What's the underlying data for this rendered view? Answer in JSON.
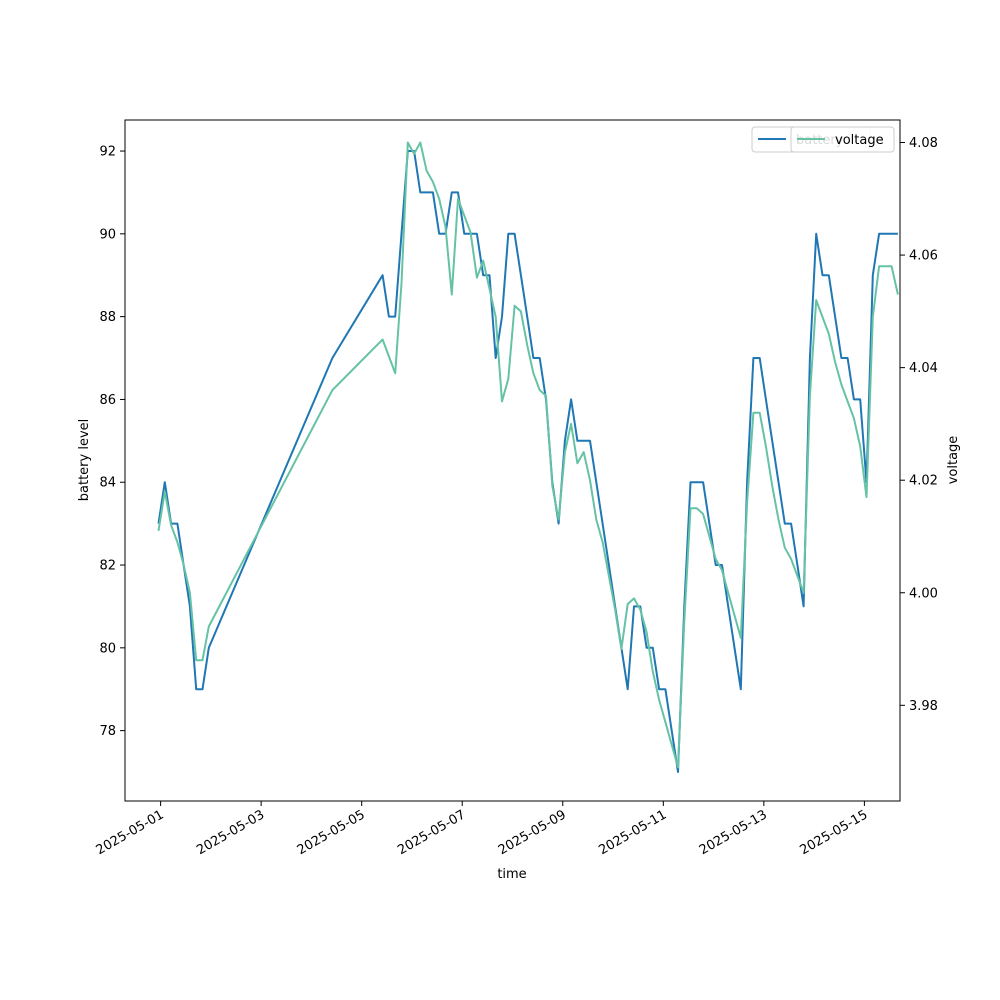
{
  "chart_data": {
    "type": "line",
    "xlabel": "time",
    "ylabel_left": "battery level",
    "ylabel_right": "voltage",
    "x_ticks": [
      "2025-05-01",
      "2025-05-03",
      "2025-05-05",
      "2025-05-07",
      "2025-05-09",
      "2025-05-11",
      "2025-05-13",
      "2025-05-15"
    ],
    "y_left_ticks": [
      78,
      80,
      82,
      84,
      86,
      88,
      90,
      92
    ],
    "y_right_ticks": [
      "3.98",
      "4.00",
      "4.02",
      "4.04",
      "4.06",
      "4.08"
    ],
    "y_left_range": [
      76.3,
      92.75
    ],
    "y_right_range": [
      3.963,
      4.084
    ],
    "x_range": [
      "2025-04-30 07:00",
      "2025-05-15 17:00"
    ],
    "legend": [
      "battery",
      "voltage"
    ],
    "grid": false,
    "series": [
      {
        "name": "battery",
        "axis": "left",
        "color": "#1f77b4",
        "points": [
          [
            "2025-04-30 23:00",
            83
          ],
          [
            "2025-05-01 02:00",
            84
          ],
          [
            "2025-05-01 05:00",
            83
          ],
          [
            "2025-05-01 08:00",
            83
          ],
          [
            "2025-05-01 11:00",
            82
          ],
          [
            "2025-05-01 14:00",
            81
          ],
          [
            "2025-05-01 17:00",
            79
          ],
          [
            "2025-05-01 20:00",
            79
          ],
          [
            "2025-05-01 23:00",
            80
          ],
          [
            "2025-05-04 10:00",
            87
          ],
          [
            "2025-05-05 10:00",
            89
          ],
          [
            "2025-05-05 13:00",
            88
          ],
          [
            "2025-05-05 16:00",
            88
          ],
          [
            "2025-05-05 19:00",
            90
          ],
          [
            "2025-05-05 22:00",
            92
          ],
          [
            "2025-05-06 01:00",
            92
          ],
          [
            "2025-05-06 04:00",
            91
          ],
          [
            "2025-05-06 07:00",
            91
          ],
          [
            "2025-05-06 10:00",
            91
          ],
          [
            "2025-05-06 13:00",
            90
          ],
          [
            "2025-05-06 16:00",
            90
          ],
          [
            "2025-05-06 19:00",
            91
          ],
          [
            "2025-05-06 22:00",
            91
          ],
          [
            "2025-05-07 01:00",
            90
          ],
          [
            "2025-05-07 04:00",
            90
          ],
          [
            "2025-05-07 07:00",
            90
          ],
          [
            "2025-05-07 10:00",
            89
          ],
          [
            "2025-05-07 13:00",
            89
          ],
          [
            "2025-05-07 16:00",
            87
          ],
          [
            "2025-05-07 19:00",
            88
          ],
          [
            "2025-05-07 22:00",
            90
          ],
          [
            "2025-05-08 01:00",
            90
          ],
          [
            "2025-05-08 04:00",
            89
          ],
          [
            "2025-05-08 07:00",
            88
          ],
          [
            "2025-05-08 10:00",
            87
          ],
          [
            "2025-05-08 13:00",
            87
          ],
          [
            "2025-05-08 16:00",
            86
          ],
          [
            "2025-05-08 19:00",
            84
          ],
          [
            "2025-05-08 22:00",
            83
          ],
          [
            "2025-05-09 01:00",
            85
          ],
          [
            "2025-05-09 04:00",
            86
          ],
          [
            "2025-05-09 07:00",
            85
          ],
          [
            "2025-05-09 10:00",
            85
          ],
          [
            "2025-05-09 13:00",
            85
          ],
          [
            "2025-05-09 16:00",
            84
          ],
          [
            "2025-05-09 19:00",
            83
          ],
          [
            "2025-05-09 22:00",
            82
          ],
          [
            "2025-05-10 01:00",
            81
          ],
          [
            "2025-05-10 04:00",
            80
          ],
          [
            "2025-05-10 07:00",
            79
          ],
          [
            "2025-05-10 10:00",
            81
          ],
          [
            "2025-05-10 13:00",
            81
          ],
          [
            "2025-05-10 16:00",
            80
          ],
          [
            "2025-05-10 19:00",
            80
          ],
          [
            "2025-05-10 22:00",
            79
          ],
          [
            "2025-05-11 01:00",
            79
          ],
          [
            "2025-05-11 04:00",
            78
          ],
          [
            "2025-05-11 07:00",
            77
          ],
          [
            "2025-05-11 10:00",
            81
          ],
          [
            "2025-05-11 13:00",
            84
          ],
          [
            "2025-05-11 16:00",
            84
          ],
          [
            "2025-05-11 19:00",
            84
          ],
          [
            "2025-05-11 22:00",
            83
          ],
          [
            "2025-05-12 01:00",
            82
          ],
          [
            "2025-05-12 04:00",
            82
          ],
          [
            "2025-05-12 07:00",
            81
          ],
          [
            "2025-05-12 10:00",
            80
          ],
          [
            "2025-05-12 13:00",
            79
          ],
          [
            "2025-05-12 16:00",
            84
          ],
          [
            "2025-05-12 19:00",
            87
          ],
          [
            "2025-05-12 22:00",
            87
          ],
          [
            "2025-05-13 01:00",
            86
          ],
          [
            "2025-05-13 04:00",
            85
          ],
          [
            "2025-05-13 07:00",
            84
          ],
          [
            "2025-05-13 10:00",
            83
          ],
          [
            "2025-05-13 13:00",
            83
          ],
          [
            "2025-05-13 16:00",
            82
          ],
          [
            "2025-05-13 19:00",
            81
          ],
          [
            "2025-05-13 22:00",
            87
          ],
          [
            "2025-05-14 01:00",
            90
          ],
          [
            "2025-05-14 04:00",
            89
          ],
          [
            "2025-05-14 07:00",
            89
          ],
          [
            "2025-05-14 10:00",
            88
          ],
          [
            "2025-05-14 13:00",
            87
          ],
          [
            "2025-05-14 16:00",
            87
          ],
          [
            "2025-05-14 19:00",
            86
          ],
          [
            "2025-05-14 22:00",
            86
          ],
          [
            "2025-05-15 01:00",
            84
          ],
          [
            "2025-05-15 04:00",
            89
          ],
          [
            "2025-05-15 07:00",
            90
          ],
          [
            "2025-05-15 10:00",
            90
          ],
          [
            "2025-05-15 13:00",
            90
          ],
          [
            "2025-05-15 16:00",
            90
          ]
        ]
      },
      {
        "name": "voltage",
        "axis": "right",
        "color": "#66c2a5",
        "points": [
          [
            "2025-04-30 23:00",
            4.011
          ],
          [
            "2025-05-01 02:00",
            4.018
          ],
          [
            "2025-05-01 05:00",
            4.012
          ],
          [
            "2025-05-01 08:00",
            4.009
          ],
          [
            "2025-05-01 11:00",
            4.005
          ],
          [
            "2025-05-01 14:00",
            4.0
          ],
          [
            "2025-05-01 17:00",
            3.988
          ],
          [
            "2025-05-01 20:00",
            3.988
          ],
          [
            "2025-05-01 23:00",
            3.994
          ],
          [
            "2025-05-04 10:00",
            4.036
          ],
          [
            "2025-05-05 10:00",
            4.045
          ],
          [
            "2025-05-05 13:00",
            4.042
          ],
          [
            "2025-05-05 16:00",
            4.039
          ],
          [
            "2025-05-05 19:00",
            4.055
          ],
          [
            "2025-05-05 22:00",
            4.08
          ],
          [
            "2025-05-06 01:00",
            4.078
          ],
          [
            "2025-05-06 04:00",
            4.08
          ],
          [
            "2025-05-06 07:00",
            4.075
          ],
          [
            "2025-05-06 10:00",
            4.073
          ],
          [
            "2025-05-06 13:00",
            4.07
          ],
          [
            "2025-05-06 16:00",
            4.065
          ],
          [
            "2025-05-06 19:00",
            4.053
          ],
          [
            "2025-05-06 22:00",
            4.07
          ],
          [
            "2025-05-07 01:00",
            4.067
          ],
          [
            "2025-05-07 04:00",
            4.064
          ],
          [
            "2025-05-07 07:00",
            4.056
          ],
          [
            "2025-05-07 10:00",
            4.059
          ],
          [
            "2025-05-07 13:00",
            4.054
          ],
          [
            "2025-05-07 16:00",
            4.049
          ],
          [
            "2025-05-07 19:00",
            4.034
          ],
          [
            "2025-05-07 22:00",
            4.038
          ],
          [
            "2025-05-08 01:00",
            4.051
          ],
          [
            "2025-05-08 04:00",
            4.05
          ],
          [
            "2025-05-08 07:00",
            4.044
          ],
          [
            "2025-05-08 10:00",
            4.039
          ],
          [
            "2025-05-08 13:00",
            4.036
          ],
          [
            "2025-05-08 16:00",
            4.035
          ],
          [
            "2025-05-08 19:00",
            4.019
          ],
          [
            "2025-05-08 22:00",
            4.013
          ],
          [
            "2025-05-09 01:00",
            4.025
          ],
          [
            "2025-05-09 04:00",
            4.03
          ],
          [
            "2025-05-09 07:00",
            4.023
          ],
          [
            "2025-05-09 10:00",
            4.025
          ],
          [
            "2025-05-09 13:00",
            4.02
          ],
          [
            "2025-05-09 16:00",
            4.013
          ],
          [
            "2025-05-09 19:00",
            4.009
          ],
          [
            "2025-05-09 22:00",
            4.003
          ],
          [
            "2025-05-10 01:00",
            3.997
          ],
          [
            "2025-05-10 04:00",
            3.99
          ],
          [
            "2025-05-10 07:00",
            3.998
          ],
          [
            "2025-05-10 10:00",
            3.999
          ],
          [
            "2025-05-10 13:00",
            3.997
          ],
          [
            "2025-05-10 16:00",
            3.993
          ],
          [
            "2025-05-10 19:00",
            3.986
          ],
          [
            "2025-05-10 22:00",
            3.981
          ],
          [
            "2025-05-11 01:00",
            3.977
          ],
          [
            "2025-05-11 04:00",
            3.973
          ],
          [
            "2025-05-11 07:00",
            3.969
          ],
          [
            "2025-05-11 10:00",
            3.995
          ],
          [
            "2025-05-11 13:00",
            4.015
          ],
          [
            "2025-05-11 16:00",
            4.015
          ],
          [
            "2025-05-11 19:00",
            4.014
          ],
          [
            "2025-05-11 22:00",
            4.01
          ],
          [
            "2025-05-12 01:00",
            4.006
          ],
          [
            "2025-05-12 04:00",
            4.004
          ],
          [
            "2025-05-12 07:00",
            4.0
          ],
          [
            "2025-05-12 10:00",
            3.996
          ],
          [
            "2025-05-12 13:00",
            3.992
          ],
          [
            "2025-05-12 16:00",
            4.016
          ],
          [
            "2025-05-12 19:00",
            4.032
          ],
          [
            "2025-05-12 22:00",
            4.032
          ],
          [
            "2025-05-13 01:00",
            4.026
          ],
          [
            "2025-05-13 04:00",
            4.019
          ],
          [
            "2025-05-13 07:00",
            4.013
          ],
          [
            "2025-05-13 10:00",
            4.008
          ],
          [
            "2025-05-13 13:00",
            4.006
          ],
          [
            "2025-05-13 16:00",
            4.003
          ],
          [
            "2025-05-13 19:00",
            4.0
          ],
          [
            "2025-05-13 22:00",
            4.035
          ],
          [
            "2025-05-14 01:00",
            4.052
          ],
          [
            "2025-05-14 04:00",
            4.049
          ],
          [
            "2025-05-14 07:00",
            4.046
          ],
          [
            "2025-05-14 10:00",
            4.041
          ],
          [
            "2025-05-14 13:00",
            4.037
          ],
          [
            "2025-05-14 16:00",
            4.034
          ],
          [
            "2025-05-14 19:00",
            4.031
          ],
          [
            "2025-05-14 22:00",
            4.026
          ],
          [
            "2025-05-15 01:00",
            4.017
          ],
          [
            "2025-05-15 04:00",
            4.049
          ],
          [
            "2025-05-15 07:00",
            4.058
          ],
          [
            "2025-05-15 10:00",
            4.058
          ],
          [
            "2025-05-15 13:00",
            4.058
          ],
          [
            "2025-05-15 16:00",
            4.053
          ]
        ]
      }
    ]
  }
}
